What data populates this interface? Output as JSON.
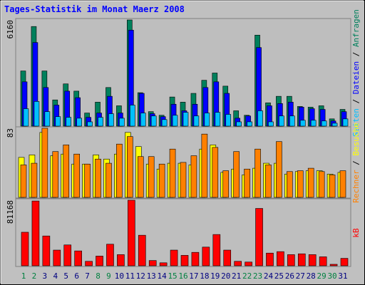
{
  "chart_data": [
    {
      "type": "bar",
      "title": "Tages-Statistik im Monat Maerz 2008",
      "legend_separator": " / ",
      "ylim": [
        0,
        6160
      ],
      "yticks": [
        6160
      ],
      "series": [
        {
          "name": "Anfragen",
          "color": "#00805c",
          "values": [
            3200,
            5780,
            3200,
            1520,
            2450,
            2030,
            760,
            1390,
            2240,
            1180,
            6160,
            1940,
            840,
            630,
            1690,
            1390,
            1900,
            2660,
            3080,
            2320,
            890,
            630,
            5280,
            1350,
            1730,
            1730,
            1140,
            1100,
            1180,
            420,
            970
          ]
        },
        {
          "name": "Dateien",
          "color": "#0000ff",
          "values": [
            2570,
            4850,
            2240,
            1220,
            2030,
            1650,
            510,
            760,
            1730,
            760,
            5570,
            1900,
            720,
            550,
            1270,
            890,
            1270,
            2240,
            2570,
            1900,
            460,
            590,
            4560,
            1180,
            1310,
            1390,
            1100,
            1010,
            970,
            300,
            840
          ]
        },
        {
          "name": "Seiten",
          "color": "#00c0ff",
          "values": [
            1010,
            1430,
            840,
            550,
            510,
            460,
            250,
            510,
            720,
            460,
            1220,
            760,
            590,
            380,
            630,
            800,
            590,
            760,
            800,
            680,
            250,
            250,
            890,
            250,
            590,
            590,
            340,
            340,
            300,
            170,
            420
          ]
        }
      ]
    },
    {
      "type": "bar",
      "legend_separator": " / ",
      "ylim": [
        0,
        83
      ],
      "yticks": [
        83
      ],
      "series": [
        {
          "name": "Besuche",
          "color": "#ffff00",
          "values": [
            48,
            51,
            78,
            50,
            52,
            40,
            40,
            51,
            46,
            52,
            78,
            61,
            40,
            34,
            41,
            41,
            39,
            58,
            63,
            30,
            34,
            27,
            35,
            41,
            41,
            28,
            31,
            32,
            32,
            28,
            30
          ]
        },
        {
          "name": "Rechner",
          "color": "#ff8000",
          "values": [
            39,
            41,
            83,
            55,
            63,
            52,
            40,
            46,
            41,
            64,
            73,
            49,
            49,
            40,
            58,
            42,
            50,
            76,
            60,
            32,
            55,
            34,
            58,
            39,
            67,
            31,
            32,
            35,
            31,
            27,
            32
          ]
        }
      ]
    },
    {
      "type": "bar",
      "ylim": [
        0,
        81168
      ],
      "yticks": [
        81168
      ],
      "categories": [
        "1",
        "2",
        "3",
        "4",
        "5",
        "6",
        "7",
        "8",
        "9",
        "10",
        "11",
        "12",
        "13",
        "14",
        "15",
        "16",
        "17",
        "18",
        "19",
        "20",
        "21",
        "22",
        "23",
        "24",
        "25",
        "26",
        "27",
        "28",
        "29",
        "30",
        "31"
      ],
      "highlight_categories": [
        0,
        1,
        7,
        8,
        14,
        15,
        21,
        22,
        28,
        29
      ],
      "highlight_color": "#008040",
      "category_color": "#000080",
      "series": [
        {
          "name": "kB",
          "color": "#ff0000",
          "values": [
            41500,
            80200,
            36900,
            19400,
            25800,
            18400,
            5500,
            12000,
            26700,
            13800,
            81168,
            37800,
            6500,
            3700,
            19400,
            12900,
            16600,
            23100,
            38700,
            19400,
            5500,
            4600,
            71000,
            15700,
            17500,
            13800,
            14800,
            13800,
            11100,
            1800,
            9200
          ]
        }
      ]
    }
  ]
}
